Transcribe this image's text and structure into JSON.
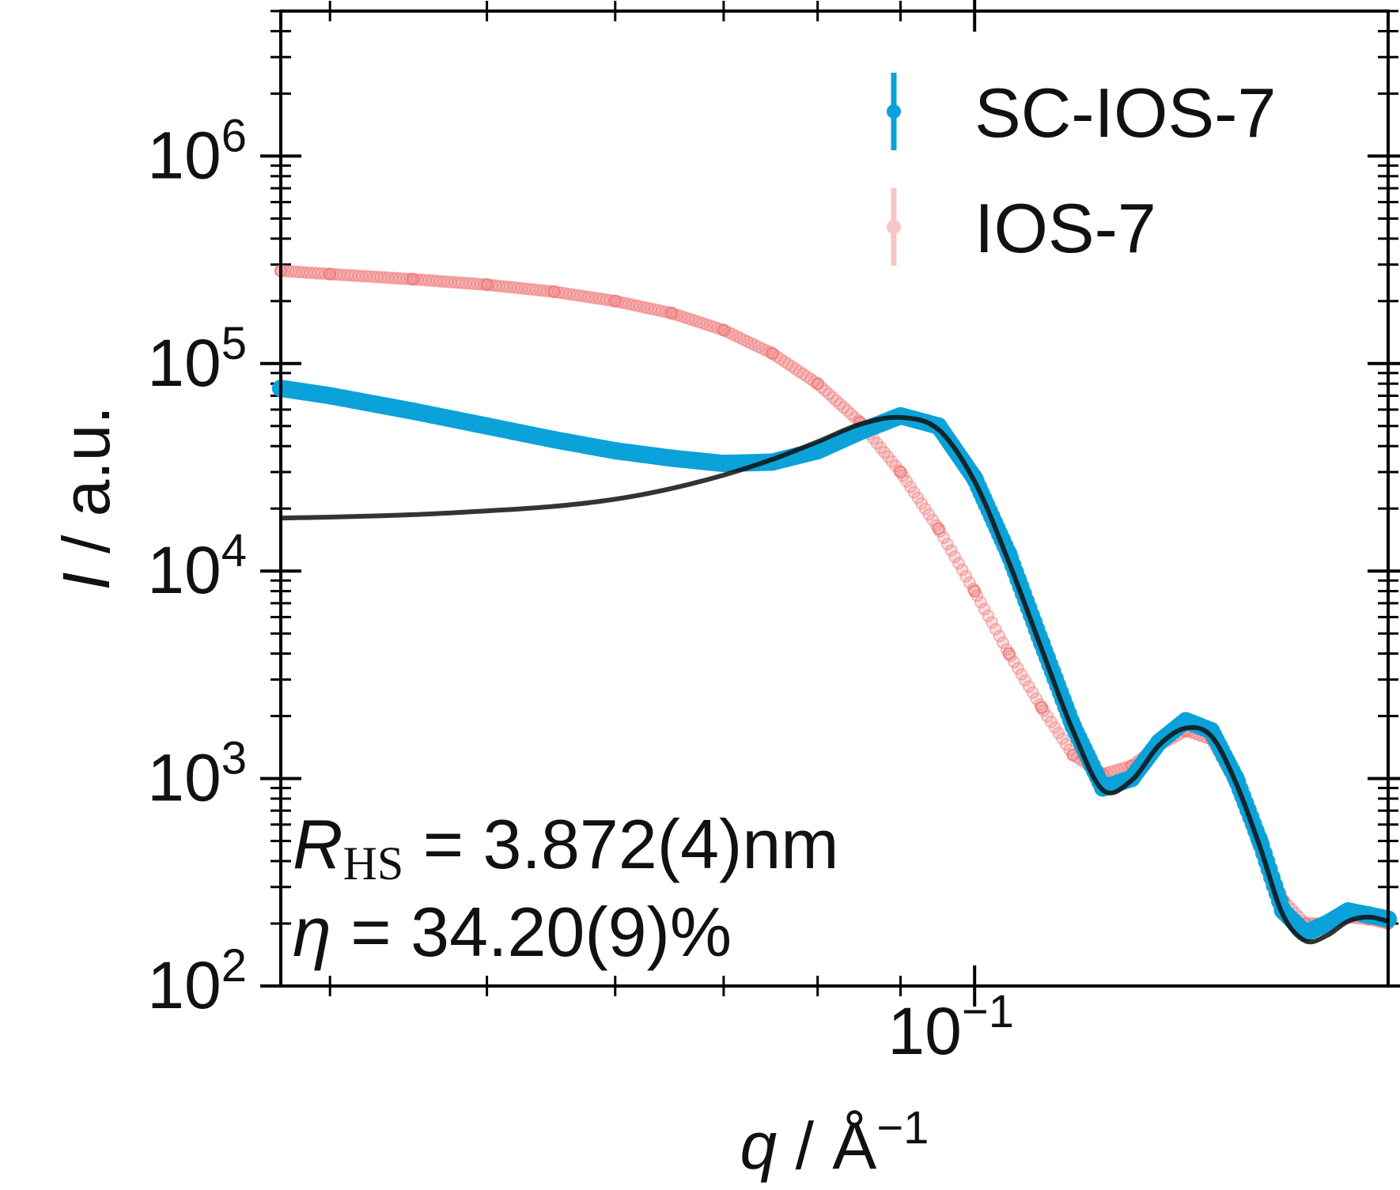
{
  "chart_data": {
    "type": "scatter",
    "xscale": "log",
    "yscale": "log",
    "xlim": [
      0.0373,
      0.18
    ],
    "ylim": [
      100,
      5000000
    ],
    "xlabel": {
      "var": "q",
      "sep": " / ",
      "unit": "Å",
      "unit_exp": "−1"
    },
    "ylabel": {
      "var": "I",
      "sep": " / ",
      "unit": "a.u."
    },
    "x_ticks": [
      {
        "base": "10",
        "exp": "−1",
        "value": 0.1
      }
    ],
    "y_ticks": [
      {
        "base": "10",
        "exp": "2",
        "value": 100
      },
      {
        "base": "10",
        "exp": "3",
        "value": 1000
      },
      {
        "base": "10",
        "exp": "4",
        "value": 10000
      },
      {
        "base": "10",
        "exp": "5",
        "value": 100000
      },
      {
        "base": "10",
        "exp": "6",
        "value": 1000000
      }
    ],
    "legend": {
      "placement": "top-right"
    },
    "annotations": {
      "r_symbol": "R",
      "r_subscript": "HS",
      "r_text": " = 3.872(4)nm",
      "eta_symbol": "η",
      "eta_text": " = 34.20(9)%"
    },
    "colors": {
      "sc": "#0aa2d8",
      "ios": "#f08080",
      "fit": "#111111"
    },
    "series": [
      {
        "name": "SC-IOS-7",
        "style": "markers",
        "color": "#0aa2d8",
        "x": [
          0.0373,
          0.04,
          0.045,
          0.05,
          0.055,
          0.06,
          0.065,
          0.07,
          0.075,
          0.08,
          0.085,
          0.09,
          0.095,
          0.1,
          0.105,
          0.11,
          0.115,
          0.12,
          0.125,
          0.13,
          0.135,
          0.14,
          0.145,
          0.15,
          0.155,
          0.16,
          0.165,
          0.17,
          0.175,
          0.18
        ],
        "y": [
          76000,
          70000,
          59000,
          50000,
          43000,
          38000,
          35000,
          33000,
          33500,
          38000,
          47000,
          56000,
          50000,
          28000,
          12000,
          4500,
          1800,
          900,
          1000,
          1500,
          1900,
          1700,
          1000,
          500,
          230,
          180,
          200,
          230,
          220,
          210
        ]
      },
      {
        "name": "IOS-7",
        "style": "markers",
        "color": "#f08080",
        "x": [
          0.0373,
          0.04,
          0.045,
          0.05,
          0.055,
          0.06,
          0.065,
          0.07,
          0.075,
          0.08,
          0.085,
          0.09,
          0.095,
          0.1,
          0.105,
          0.11,
          0.115,
          0.12,
          0.125,
          0.13,
          0.135,
          0.14,
          0.145,
          0.15,
          0.155,
          0.16,
          0.165,
          0.17,
          0.175,
          0.18
        ],
        "y": [
          280000,
          270000,
          255000,
          240000,
          222000,
          200000,
          175000,
          145000,
          112000,
          80000,
          52000,
          30000,
          16000,
          8000,
          4000,
          2200,
          1300,
          1050,
          1150,
          1450,
          1700,
          1550,
          950,
          480,
          260,
          200,
          200,
          215,
          210,
          200
        ]
      },
      {
        "name": "",
        "style": "line",
        "color": "#111111",
        "x": [
          0.0373,
          0.04,
          0.045,
          0.05,
          0.055,
          0.06,
          0.065,
          0.07,
          0.075,
          0.08,
          0.085,
          0.09,
          0.095,
          0.1,
          0.105,
          0.11,
          0.115,
          0.12,
          0.125,
          0.13,
          0.135,
          0.14,
          0.145,
          0.15,
          0.155,
          0.16,
          0.165,
          0.17,
          0.175,
          0.18
        ],
        "y": [
          18000,
          18200,
          18700,
          19500,
          20500,
          22200,
          25000,
          29000,
          34500,
          42000,
          51000,
          55000,
          48000,
          27000,
          11000,
          4200,
          1700,
          880,
          980,
          1450,
          1750,
          1600,
          950,
          470,
          220,
          165,
          175,
          205,
          215,
          205
        ]
      }
    ]
  }
}
